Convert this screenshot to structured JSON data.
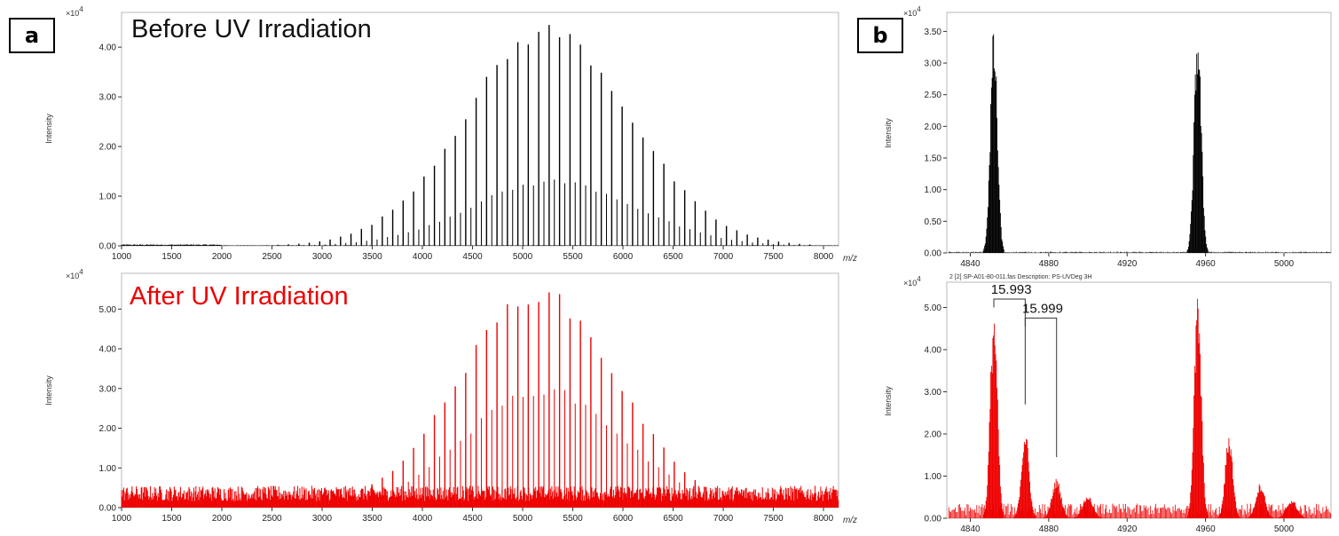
{
  "figure": {
    "panel_labels": [
      "a",
      "b"
    ]
  },
  "chart_data": [
    {
      "type": "bar",
      "panel": "a",
      "title": "Before UV Irradiation",
      "color": "#000000",
      "xlabel": "m/z",
      "ylabel": "Intensity",
      "y_multiplier": "×10",
      "y_exponent": "4",
      "xlim": [
        1000,
        8150
      ],
      "ylim": [
        0,
        4.7
      ],
      "xticks": [
        "1000",
        "1500",
        "2000",
        "2500",
        "3000",
        "3500",
        "4000",
        "4500",
        "5000",
        "5500",
        "6000",
        "6500",
        "7000",
        "7500",
        "8000"
      ],
      "yticks": [
        "0.00",
        "1.00",
        "2.00",
        "3.00",
        "4.00"
      ],
      "peak_spacing": 104,
      "peak_start": 1000,
      "peak_center": 5250,
      "peak_max": 4.5,
      "peak_sigma": 820,
      "noise_level": 0.03
    },
    {
      "type": "bar",
      "panel": "a",
      "title": "After UV Irradiation",
      "color": "#ee0000",
      "xlabel": "m/z",
      "ylabel": "Intensity",
      "y_multiplier": "×10",
      "y_exponent": "4",
      "xlim": [
        1000,
        8150
      ],
      "ylim": [
        0,
        5.9
      ],
      "xticks": [
        "1000",
        "1500",
        "2000",
        "2500",
        "3000",
        "3500",
        "4000",
        "4500",
        "5000",
        "5500",
        "6000",
        "6500",
        "7000",
        "7500",
        "8000"
      ],
      "yticks": [
        "0.00",
        "1.00",
        "2.00",
        "3.00",
        "4.00",
        "5.00"
      ],
      "peak_spacing": 104,
      "peak_start": 1000,
      "peak_center": 5150,
      "peak_max": 5.6,
      "peak_sigma": 780,
      "noise_level": 0.55
    },
    {
      "type": "bar",
      "panel": "b",
      "title": "",
      "color": "#000000",
      "xlabel": "",
      "ylabel": "Intensity",
      "y_multiplier": "×10",
      "y_exponent": "4",
      "xlim": [
        4828,
        5024
      ],
      "ylim": [
        0,
        3.8
      ],
      "xticks": [
        "4840",
        "4880",
        "4920",
        "4960",
        "5000"
      ],
      "yticks": [
        "0.00",
        "0.50",
        "1.00",
        "1.50",
        "2.00",
        "2.50",
        "3.00",
        "3.50"
      ],
      "clusters": [
        {
          "center": 4852,
          "height": 3.58,
          "width": 1.8
        },
        {
          "center": 4956,
          "height": 3.65,
          "width": 1.8
        }
      ],
      "noise_level": 0.02
    },
    {
      "type": "bar",
      "panel": "b",
      "title": "",
      "header_text": "2 [2] SP-A01-80-011.fas   Description: PS-UVDeg 3H",
      "color": "#ee0000",
      "xlabel": "",
      "ylabel": "Intensity",
      "y_multiplier": "×10",
      "y_exponent": "4",
      "xlim": [
        4828,
        5024
      ],
      "ylim": [
        0,
        5.6
      ],
      "xticks": [
        "4840",
        "4880",
        "4920",
        "4960",
        "5000"
      ],
      "yticks": [
        "0.00",
        "1.00",
        "2.00",
        "3.00",
        "4.00",
        "5.00"
      ],
      "clusters": [
        {
          "center": 4852,
          "height": 5.1,
          "width": 1.8
        },
        {
          "center": 4868,
          "height": 2.15,
          "width": 1.9
        },
        {
          "center": 4884,
          "height": 0.95,
          "width": 2.3
        },
        {
          "center": 4900,
          "height": 0.55,
          "width": 2.6
        },
        {
          "center": 4956,
          "height": 5.35,
          "width": 1.8
        },
        {
          "center": 4972,
          "height": 2.05,
          "width": 1.9
        },
        {
          "center": 4988,
          "height": 0.85,
          "width": 2.3
        },
        {
          "center": 5004,
          "height": 0.45,
          "width": 2.6
        }
      ],
      "noise_level": 0.35,
      "annotations": [
        {
          "label": "15.993",
          "x_from": 4852,
          "x_to": 4868,
          "y_top": 5.2,
          "y_right_bottom": 2.7
        },
        {
          "label": "15.999",
          "x_from": 4868,
          "x_to": 4884,
          "y_top": 4.75,
          "y_right_bottom": 1.45
        }
      ]
    }
  ]
}
